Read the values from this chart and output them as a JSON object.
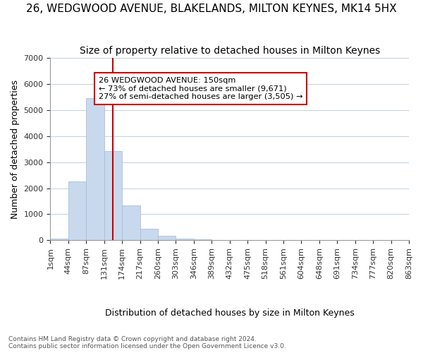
{
  "title": "26, WEDGWOOD AVENUE, BLAKELANDS, MILTON KEYNES, MK14 5HX",
  "subtitle": "Size of property relative to detached houses in Milton Keynes",
  "xlabel": "Distribution of detached houses by size in Milton Keynes",
  "ylabel": "Number of detached properties",
  "bar_values": [
    60,
    2270,
    5460,
    3420,
    1340,
    450,
    170,
    80,
    30,
    0,
    0,
    0,
    0,
    0,
    0,
    0,
    0,
    0,
    0,
    0
  ],
  "bar_labels": [
    "1sqm",
    "44sqm",
    "87sqm",
    "131sqm",
    "174sqm",
    "217sqm",
    "260sqm",
    "303sqm",
    "346sqm",
    "389sqm",
    "432sqm",
    "475sqm",
    "518sqm",
    "561sqm",
    "604sqm",
    "648sqm",
    "691sqm",
    "734sqm",
    "777sqm",
    "820sqm"
  ],
  "last_label": "863sqm",
  "bar_color": "#c8d9ed",
  "bar_edge_color": "#a0b8d8",
  "vline_x": 150,
  "vline_color": "#cc0000",
  "annotation_title": "26 WEDGWOOD AVENUE: 150sqm",
  "annotation_line1": "← 73% of detached houses are smaller (9,671)",
  "annotation_line2": "27% of semi-detached houses are larger (3,505) →",
  "annotation_box_color": "#ffffff",
  "annotation_box_edge": "#cc0000",
  "ylim": [
    0,
    7000
  ],
  "yticks": [
    0,
    1000,
    2000,
    3000,
    4000,
    5000,
    6000,
    7000
  ],
  "footnote1": "Contains HM Land Registry data © Crown copyright and database right 2024.",
  "footnote2": "Contains public sector information licensed under the Open Government Licence v3.0.",
  "background_color": "#ffffff",
  "grid_color": "#c0d0e0",
  "title_fontsize": 11,
  "subtitle_fontsize": 10,
  "bin_width": 43
}
